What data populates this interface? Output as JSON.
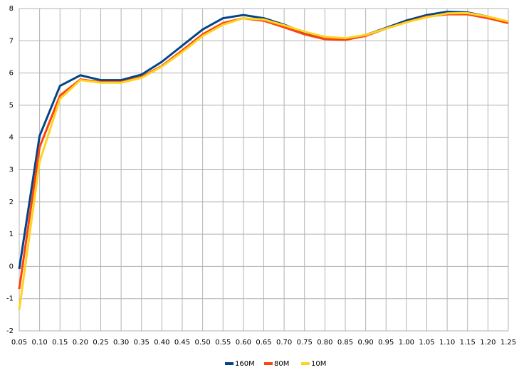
{
  "chart_data": {
    "type": "line",
    "categories": [
      "0.05",
      "0.10",
      "0.15",
      "0.20",
      "0.25",
      "0.30",
      "0.35",
      "0.40",
      "0.45",
      "0.50",
      "0.55",
      "0.60",
      "0.65",
      "0.70",
      "0.75",
      "0.80",
      "0.85",
      "0.90",
      "0.95",
      "1.00",
      "1.05",
      "1.10",
      "1.15",
      "1.20",
      "1.25"
    ],
    "series": [
      {
        "name": "160M",
        "color": "#004586",
        "values": [
          -0.08,
          4.05,
          5.6,
          5.93,
          5.78,
          5.78,
          5.95,
          6.35,
          6.85,
          7.35,
          7.7,
          7.8,
          7.7,
          7.5,
          7.25,
          7.08,
          7.05,
          7.18,
          7.4,
          7.63,
          7.8,
          7.9,
          7.88,
          7.75,
          7.58
        ]
      },
      {
        "name": "80M",
        "color": "#ff420e",
        "values": [
          -0.7,
          3.7,
          5.3,
          5.8,
          5.72,
          5.72,
          5.88,
          6.22,
          6.7,
          7.2,
          7.55,
          7.7,
          7.62,
          7.42,
          7.2,
          7.05,
          7.03,
          7.15,
          7.38,
          7.58,
          7.75,
          7.82,
          7.82,
          7.7,
          7.55
        ]
      },
      {
        "name": "10M",
        "color": "#ffd320",
        "values": [
          -1.35,
          3.25,
          5.2,
          5.78,
          5.7,
          5.7,
          5.85,
          6.2,
          6.65,
          7.15,
          7.5,
          7.7,
          7.66,
          7.48,
          7.28,
          7.12,
          7.08,
          7.18,
          7.38,
          7.57,
          7.73,
          7.85,
          7.86,
          7.75,
          7.6
        ]
      }
    ],
    "ylim": [
      -2,
      8
    ],
    "yticks": [
      -2,
      -1,
      0,
      1,
      2,
      3,
      4,
      5,
      6,
      7,
      8
    ],
    "grid": true,
    "legend": "bottom"
  }
}
